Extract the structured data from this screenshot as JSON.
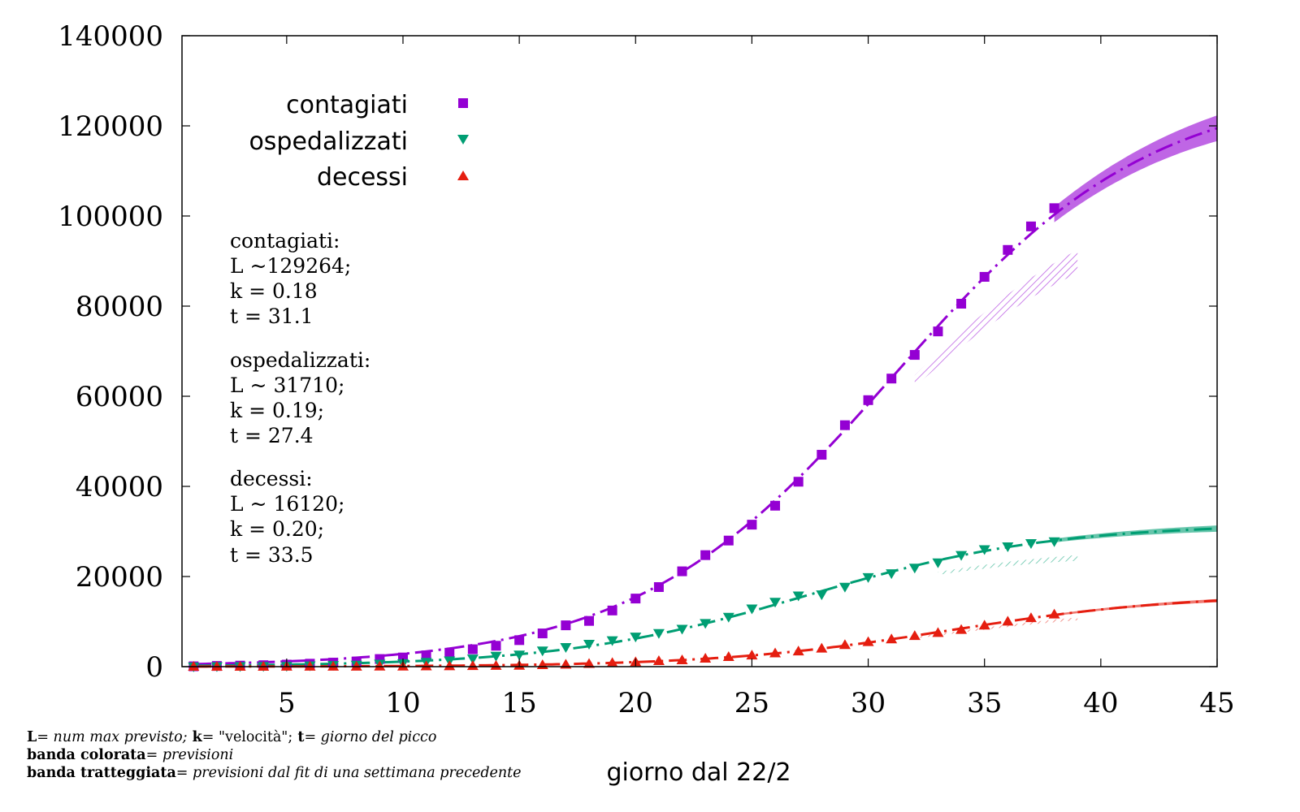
{
  "chart_data": {
    "type": "scatter",
    "xlabel": "giorno dal 22/2",
    "ylabel": "",
    "xlim": [
      0.5,
      45
    ],
    "ylim": [
      0,
      140000
    ],
    "x_ticks": [
      5,
      10,
      15,
      20,
      25,
      30,
      35,
      40,
      45
    ],
    "y_ticks": [
      0,
      20000,
      40000,
      60000,
      80000,
      100000,
      120000,
      140000
    ],
    "grid": false,
    "legend": "top-left",
    "series": [
      {
        "name": "contagiati",
        "color": "#9400d3",
        "marker": "square",
        "x": [
          1,
          2,
          3,
          4,
          5,
          6,
          7,
          8,
          9,
          10,
          11,
          12,
          13,
          14,
          15,
          16,
          17,
          18,
          19,
          20,
          21,
          22,
          23,
          24,
          25,
          26,
          27,
          28,
          29,
          30,
          31,
          32,
          33,
          34,
          35,
          36,
          37,
          38
        ],
        "y": [
          76,
          152,
          229,
          322,
          453,
          655,
          888,
          1128,
          1694,
          2036,
          2502,
          3089,
          3858,
          4636,
          5883,
          7375,
          9172,
          10149,
          12462,
          15113,
          17660,
          21157,
          24747,
          27980,
          31506,
          35713,
          41035,
          47021,
          53578,
          59138,
          63927,
          69176,
          74386,
          80539,
          86498,
          92472,
          97689,
          101739
        ]
      },
      {
        "name": "ospedalizzati",
        "color": "#009e73",
        "marker": "triangle-down",
        "x": [
          1,
          2,
          3,
          4,
          5,
          6,
          7,
          8,
          9,
          10,
          11,
          12,
          13,
          14,
          15,
          16,
          17,
          18,
          19,
          20,
          21,
          22,
          23,
          24,
          25,
          26,
          27,
          28,
          29,
          30,
          31,
          32,
          33,
          34,
          35,
          36,
          37,
          38
        ],
        "y": [
          19,
          59,
          101,
          114,
          128,
          248,
          345,
          401,
          639,
          742,
          1034,
          1346,
          1790,
          2394,
          2651,
          3557,
          4316,
          5038,
          5838,
          6650,
          7426,
          8372,
          9663,
          11025,
          12894,
          14363,
          15757,
          16020,
          17708,
          19846,
          20692,
          21937,
          23112,
          24753,
          26029,
          26676,
          27386,
          27795
        ]
      },
      {
        "name": "decessi",
        "color": "#e51e10",
        "marker": "triangle-up",
        "x": [
          1,
          2,
          3,
          4,
          5,
          6,
          7,
          8,
          9,
          10,
          11,
          12,
          13,
          14,
          15,
          16,
          17,
          18,
          19,
          20,
          21,
          22,
          23,
          24,
          25,
          26,
          27,
          28,
          29,
          30,
          31,
          32,
          33,
          34,
          35,
          36,
          37,
          38
        ],
        "y": [
          2,
          3,
          7,
          10,
          12,
          17,
          21,
          29,
          34,
          52,
          79,
          107,
          148,
          197,
          233,
          366,
          463,
          631,
          827,
          1016,
          1266,
          1441,
          1809,
          2158,
          2503,
          2978,
          3405,
          4032,
          4825,
          5476,
          6077,
          6820,
          7503,
          8165,
          9134,
          10023,
          10779,
          11591
        ]
      }
    ],
    "fits": [
      {
        "series": "contagiati",
        "L": 129264,
        "k": 0.18,
        "t": 31.1
      },
      {
        "series": "ospedalizzati",
        "L": 31710,
        "k": 0.19,
        "t": 27.4
      },
      {
        "series": "decessi",
        "L": 16120,
        "k": 0.2,
        "t": 33.5
      }
    ],
    "bands": [
      {
        "series": "contagiati",
        "kind": "colorata",
        "x_from": 38,
        "x_to": 45
      },
      {
        "series": "ospedalizzati",
        "kind": "colorata",
        "x_from": 38,
        "x_to": 45
      },
      {
        "series": "decessi",
        "kind": "colorata",
        "x_from": 38,
        "x_to": 45
      },
      {
        "series": "contagiati",
        "kind": "tratteggiata",
        "x_from": 32,
        "x_to": 39
      },
      {
        "series": "ospedalizzati",
        "kind": "tratteggiata",
        "x_from": 33,
        "x_to": 39
      },
      {
        "series": "decessi",
        "kind": "tratteggiata",
        "x_from": 32,
        "x_to": 39
      }
    ]
  },
  "annotations": {
    "params": [
      [
        "contagiati:",
        "L ~129264;",
        "k = 0.18",
        "t = 31.1"
      ],
      [
        "ospedalizzati:",
        "L ~ 31710;",
        "k = 0.19;",
        "t = 27.4"
      ],
      [
        "decessi:",
        "L ~ 16120;",
        "k = 0.20;",
        "t = 33.5"
      ]
    ],
    "notes": [
      {
        "b1": "L",
        "t1": "= ",
        "i1": "num max previsto;",
        "b2": " k",
        "t2": "= \"velocità\";",
        "b3": " t",
        "t3": "= ",
        "i2": "giorno del picco"
      },
      {
        "b1": "banda colorata",
        "t1": "= ",
        "i1": "previsioni"
      },
      {
        "b1": "banda tratteggiata",
        "t1": "= ",
        "i1": "previsioni dal fit di una settimana precedente"
      }
    ]
  }
}
